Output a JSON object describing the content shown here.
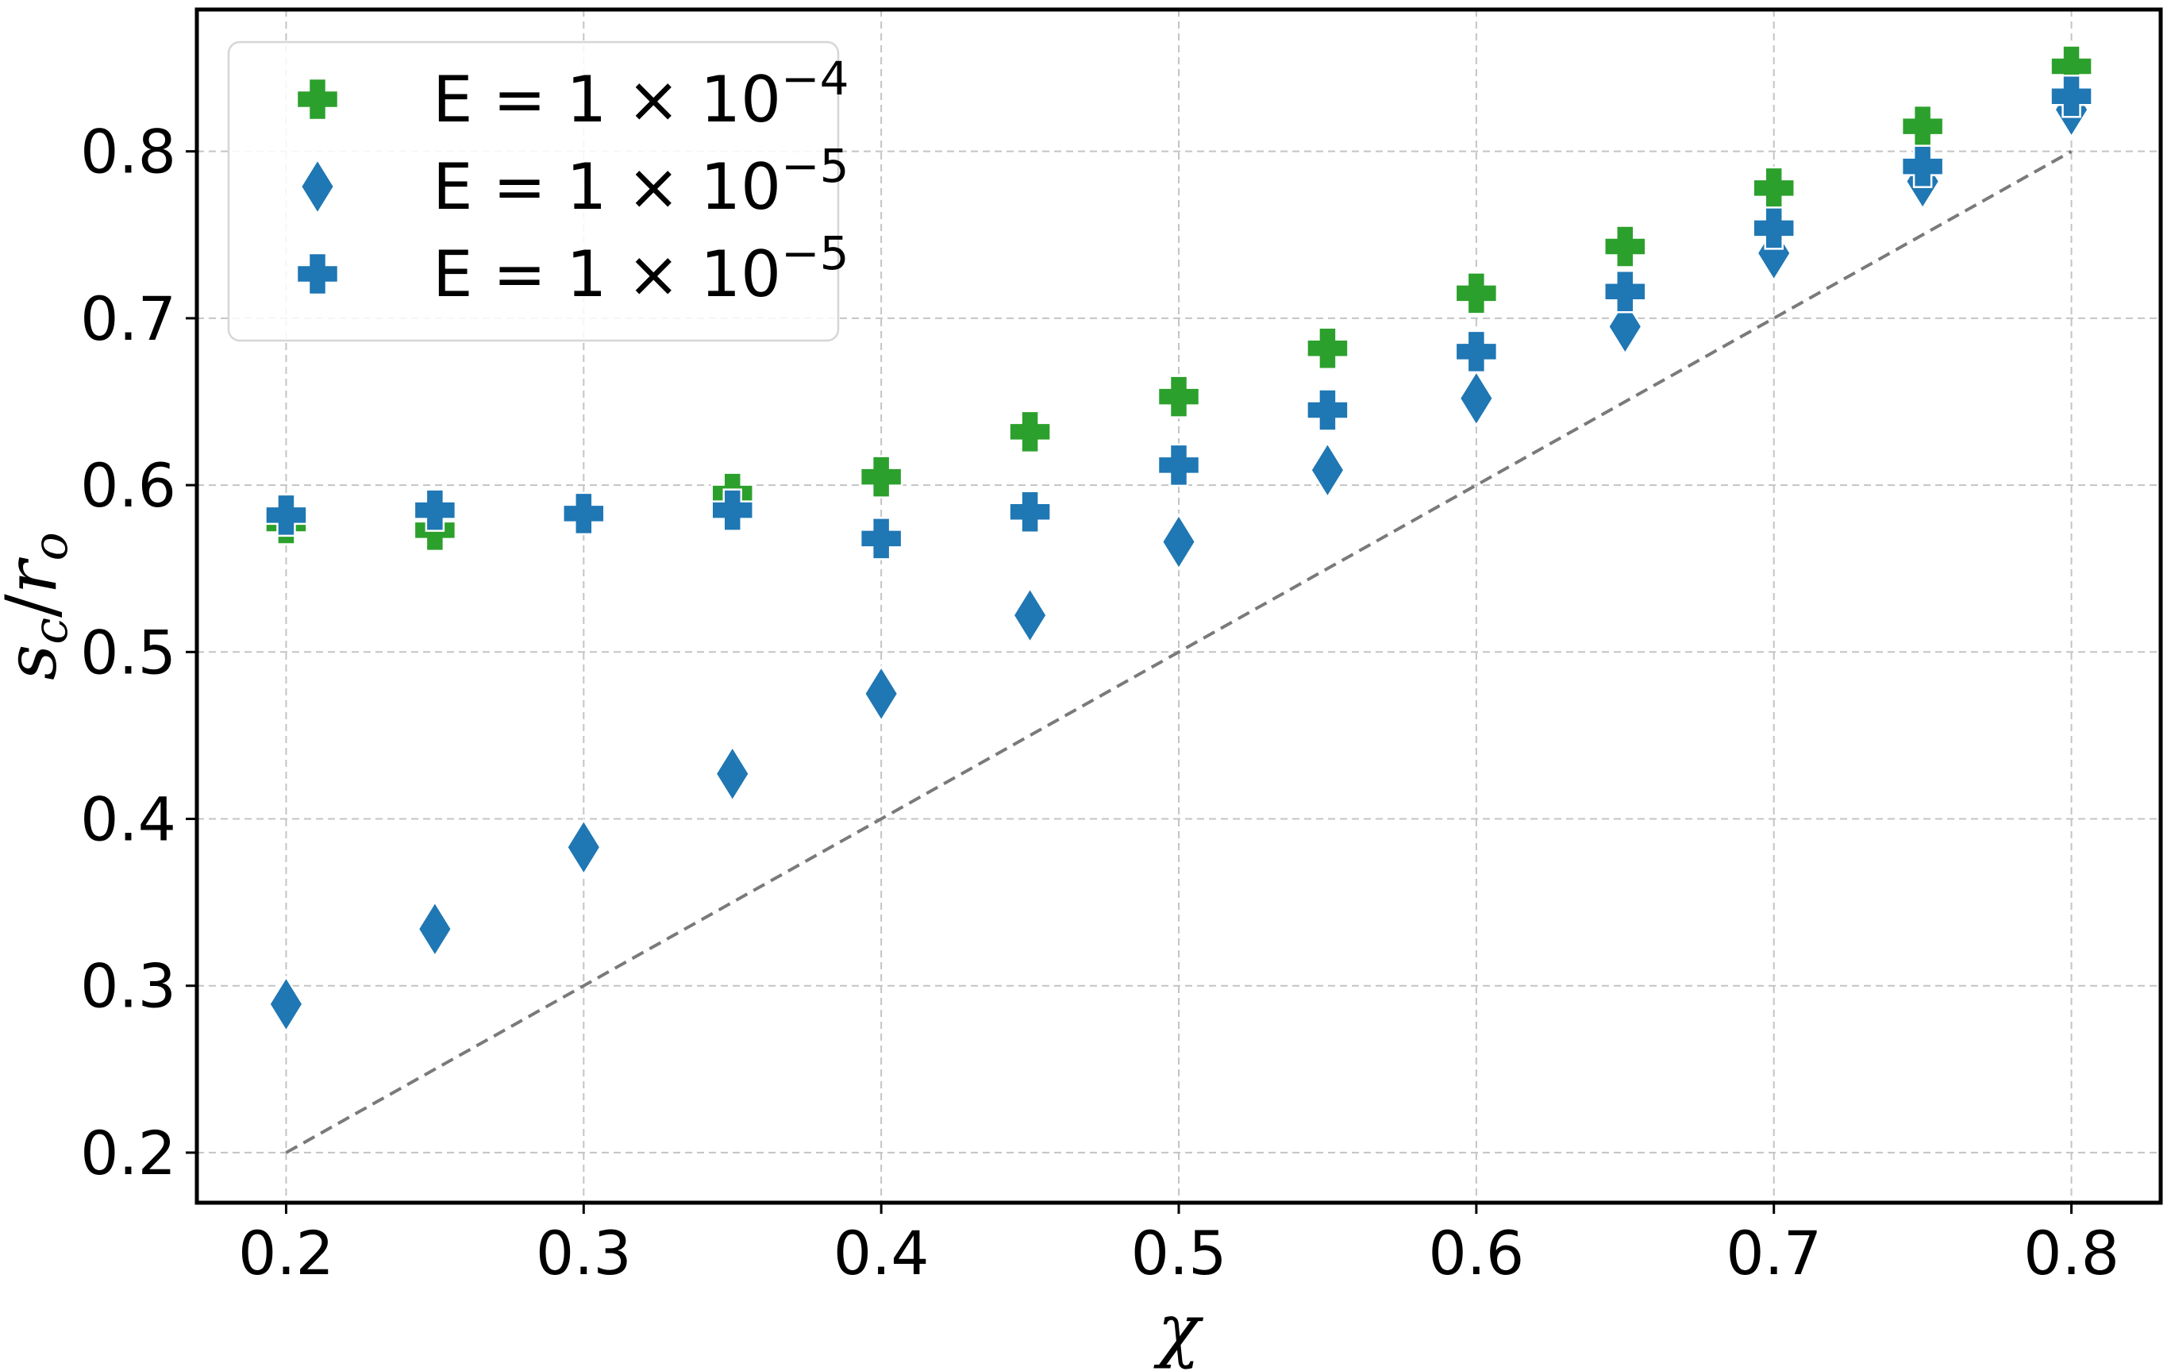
{
  "chart_data": {
    "type": "scatter",
    "title": "",
    "xlabel": "χ",
    "ylabel": "sc/ro",
    "ylabel_parts": {
      "base1": "s",
      "sub1": "c",
      "sep": "/",
      "base2": "r",
      "sub2": "o"
    },
    "xlim": [
      0.17,
      0.83
    ],
    "ylim": [
      0.17,
      0.885
    ],
    "xticks": [
      0.2,
      0.3,
      0.4,
      0.5,
      0.6,
      0.7,
      0.8
    ],
    "xtick_labels": [
      "0.2",
      "0.3",
      "0.4",
      "0.5",
      "0.6",
      "0.7",
      "0.8"
    ],
    "yticks": [
      0.2,
      0.3,
      0.4,
      0.5,
      0.6,
      0.7,
      0.8
    ],
    "ytick_labels": [
      "0.2",
      "0.3",
      "0.4",
      "0.5",
      "0.6",
      "0.7",
      "0.8"
    ],
    "grid": true,
    "legend_position": "upper-left",
    "reference_line": {
      "style": "dashed",
      "color": "#7a7a7a",
      "x": [
        0.2,
        0.8
      ],
      "y": [
        0.2,
        0.8
      ]
    },
    "series": [
      {
        "name": "E = 1 × 10⁻⁴",
        "legend": {
          "prefix": "E = 1 × 10",
          "exponent": "−4"
        },
        "marker": "plus",
        "color": "#2ca02c",
        "x": [
          0.2,
          0.25,
          0.3,
          0.35,
          0.4,
          0.45,
          0.5,
          0.55,
          0.6,
          0.65,
          0.7,
          0.75,
          0.8
        ],
        "y": [
          0.577,
          0.573,
          0.583,
          0.595,
          0.605,
          0.632,
          0.653,
          0.682,
          0.715,
          0.743,
          0.778,
          0.815,
          0.851
        ]
      },
      {
        "name": "E = 1 × 10⁻⁵",
        "legend": {
          "prefix": "E = 1 × 10",
          "exponent": "−5"
        },
        "marker": "diamond",
        "color": "#1f77b4",
        "x": [
          0.2,
          0.25,
          0.3,
          0.35,
          0.4,
          0.45,
          0.5,
          0.55,
          0.6,
          0.65,
          0.7,
          0.75,
          0.8
        ],
        "y": [
          0.289,
          0.334,
          0.383,
          0.427,
          0.475,
          0.522,
          0.566,
          0.609,
          0.652,
          0.695,
          0.739,
          0.782,
          0.825
        ]
      },
      {
        "name": "E = 1 × 10⁻⁵",
        "legend": {
          "prefix": "E = 1 × 10",
          "exponent": "−5"
        },
        "marker": "plus",
        "color": "#1f77b4",
        "x": [
          0.2,
          0.25,
          0.3,
          0.35,
          0.4,
          0.45,
          0.5,
          0.55,
          0.6,
          0.65,
          0.7,
          0.75,
          0.8
        ],
        "y": [
          0.582,
          0.585,
          0.583,
          0.585,
          0.568,
          0.584,
          0.612,
          0.645,
          0.68,
          0.716,
          0.754,
          0.791,
          0.833
        ]
      }
    ]
  }
}
